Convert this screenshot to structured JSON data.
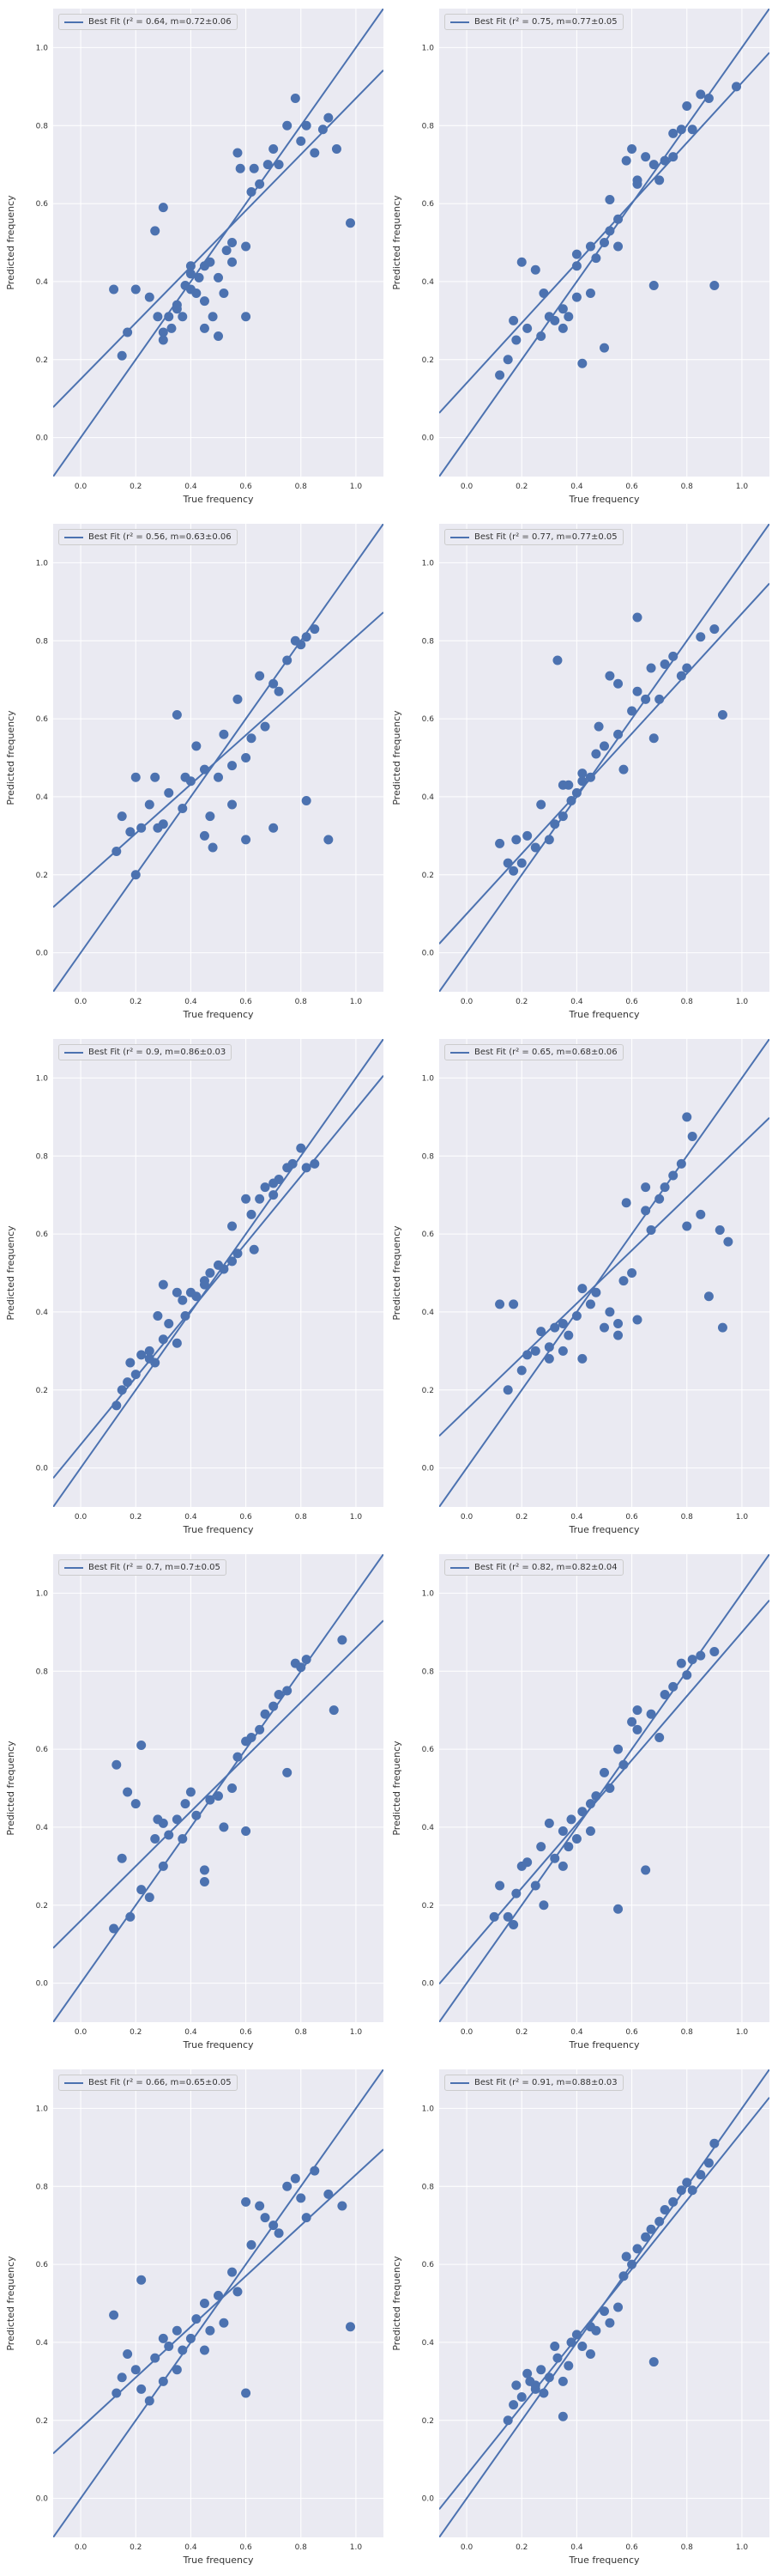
{
  "style": {
    "background": "#eaeaf2",
    "grid": "#ffffff",
    "series_color": "#4c72b0",
    "text": "#333333"
  },
  "chart_data": [
    {
      "type": "scatter",
      "xlabel": "True frequency",
      "ylabel": "Predicted frequency",
      "xlim": [
        -0.1,
        1.1
      ],
      "ylim": [
        -0.1,
        1.1
      ],
      "grid": true,
      "legend_position": "top-left",
      "legend_label": "Best Fit (r² = 0.64, m=0.72±0.06",
      "slope": 0.72,
      "intercept": 0.15,
      "x": [
        0.12,
        0.15,
        0.17,
        0.2,
        0.25,
        0.27,
        0.28,
        0.3,
        0.3,
        0.32,
        0.33,
        0.35,
        0.37,
        0.38,
        0.4,
        0.4,
        0.42,
        0.43,
        0.45,
        0.45,
        0.47,
        0.48,
        0.5,
        0.52,
        0.53,
        0.55,
        0.57,
        0.58,
        0.6,
        0.62,
        0.63,
        0.65,
        0.68,
        0.7,
        0.72,
        0.75,
        0.78,
        0.8,
        0.82,
        0.85,
        0.88,
        0.9,
        0.93,
        0.98,
        0.6,
        0.55,
        0.5,
        0.45,
        0.4,
        0.35,
        0.3
      ],
      "y": [
        0.38,
        0.21,
        0.27,
        0.38,
        0.36,
        0.53,
        0.31,
        0.25,
        0.59,
        0.31,
        0.28,
        0.33,
        0.31,
        0.39,
        0.44,
        0.38,
        0.37,
        0.41,
        0.35,
        0.44,
        0.45,
        0.31,
        0.26,
        0.37,
        0.48,
        0.5,
        0.73,
        0.69,
        0.49,
        0.63,
        0.69,
        0.65,
        0.7,
        0.74,
        0.7,
        0.8,
        0.87,
        0.76,
        0.8,
        0.73,
        0.79,
        0.82,
        0.74,
        0.55,
        0.31,
        0.45,
        0.41,
        0.28,
        0.42,
        0.34,
        0.27
      ]
    },
    {
      "type": "scatter",
      "xlabel": "True frequency",
      "ylabel": "Predicted frequency",
      "xlim": [
        -0.1,
        1.1
      ],
      "ylim": [
        -0.1,
        1.1
      ],
      "grid": true,
      "legend_position": "top-left",
      "legend_label": "Best Fit (r² = 0.75, m=0.77±0.05",
      "slope": 0.77,
      "intercept": 0.14,
      "x": [
        0.12,
        0.15,
        0.17,
        0.18,
        0.2,
        0.22,
        0.25,
        0.27,
        0.3,
        0.32,
        0.35,
        0.37,
        0.4,
        0.4,
        0.42,
        0.45,
        0.47,
        0.5,
        0.5,
        0.52,
        0.55,
        0.58,
        0.6,
        0.62,
        0.65,
        0.68,
        0.7,
        0.72,
        0.75,
        0.78,
        0.8,
        0.82,
        0.85,
        0.88,
        0.9,
        0.98,
        0.68,
        0.52,
        0.45,
        0.4,
        0.28,
        0.35,
        0.62,
        0.75,
        0.55
      ],
      "y": [
        0.16,
        0.2,
        0.3,
        0.25,
        0.45,
        0.28,
        0.43,
        0.26,
        0.31,
        0.3,
        0.33,
        0.31,
        0.36,
        0.47,
        0.19,
        0.49,
        0.46,
        0.5,
        0.23,
        0.53,
        0.56,
        0.71,
        0.74,
        0.65,
        0.72,
        0.39,
        0.66,
        0.71,
        0.78,
        0.79,
        0.85,
        0.79,
        0.88,
        0.87,
        0.39,
        0.9,
        0.7,
        0.61,
        0.37,
        0.44,
        0.37,
        0.28,
        0.66,
        0.72,
        0.49
      ]
    },
    {
      "type": "scatter",
      "xlabel": "True frequency",
      "ylabel": "Predicted frequency",
      "xlim": [
        -0.1,
        1.1
      ],
      "ylim": [
        -0.1,
        1.1
      ],
      "grid": true,
      "legend_position": "top-left",
      "legend_label": "Best Fit (r² = 0.56, m=0.63±0.06",
      "slope": 0.63,
      "intercept": 0.18,
      "x": [
        0.13,
        0.15,
        0.18,
        0.2,
        0.22,
        0.25,
        0.27,
        0.3,
        0.32,
        0.35,
        0.37,
        0.4,
        0.42,
        0.45,
        0.47,
        0.5,
        0.52,
        0.55,
        0.57,
        0.6,
        0.62,
        0.65,
        0.67,
        0.7,
        0.72,
        0.75,
        0.78,
        0.8,
        0.82,
        0.85,
        0.9,
        0.82,
        0.7,
        0.6,
        0.55,
        0.48,
        0.45,
        0.38,
        0.28,
        0.2
      ],
      "y": [
        0.26,
        0.35,
        0.31,
        0.45,
        0.32,
        0.38,
        0.45,
        0.33,
        0.41,
        0.61,
        0.37,
        0.44,
        0.53,
        0.3,
        0.35,
        0.45,
        0.56,
        0.38,
        0.65,
        0.29,
        0.55,
        0.71,
        0.58,
        0.69,
        0.67,
        0.75,
        0.8,
        0.79,
        0.81,
        0.83,
        0.29,
        0.39,
        0.32,
        0.5,
        0.48,
        0.27,
        0.47,
        0.45,
        0.32,
        0.2
      ]
    },
    {
      "type": "scatter",
      "xlabel": "True frequency",
      "ylabel": "Predicted frequency",
      "xlim": [
        -0.1,
        1.1
      ],
      "ylim": [
        -0.1,
        1.1
      ],
      "grid": true,
      "legend_position": "top-left",
      "legend_label": "Best Fit (r² = 0.77, m=0.77±0.05",
      "slope": 0.77,
      "intercept": 0.1,
      "x": [
        0.12,
        0.15,
        0.17,
        0.18,
        0.2,
        0.22,
        0.25,
        0.27,
        0.3,
        0.32,
        0.33,
        0.35,
        0.37,
        0.38,
        0.4,
        0.42,
        0.45,
        0.47,
        0.5,
        0.52,
        0.55,
        0.57,
        0.6,
        0.62,
        0.65,
        0.67,
        0.7,
        0.72,
        0.75,
        0.78,
        0.8,
        0.85,
        0.9,
        0.93,
        0.62,
        0.68,
        0.55,
        0.48,
        0.42,
        0.35
      ],
      "y": [
        0.28,
        0.23,
        0.21,
        0.29,
        0.23,
        0.3,
        0.27,
        0.38,
        0.29,
        0.33,
        0.75,
        0.35,
        0.43,
        0.39,
        0.41,
        0.44,
        0.45,
        0.51,
        0.53,
        0.71,
        0.56,
        0.47,
        0.62,
        0.86,
        0.65,
        0.73,
        0.65,
        0.74,
        0.76,
        0.71,
        0.73,
        0.81,
        0.83,
        0.61,
        0.67,
        0.55,
        0.69,
        0.58,
        0.46,
        0.43
      ]
    },
    {
      "type": "scatter",
      "xlabel": "True frequency",
      "ylabel": "Predicted frequency",
      "xlim": [
        -0.1,
        1.1
      ],
      "ylim": [
        -0.1,
        1.1
      ],
      "grid": true,
      "legend_position": "top-left",
      "legend_label": "Best Fit (r² = 0.9, m=0.86±0.03",
      "slope": 0.86,
      "intercept": 0.06,
      "x": [
        0.13,
        0.15,
        0.17,
        0.18,
        0.2,
        0.22,
        0.25,
        0.27,
        0.28,
        0.3,
        0.32,
        0.35,
        0.37,
        0.38,
        0.4,
        0.42,
        0.45,
        0.47,
        0.5,
        0.52,
        0.55,
        0.57,
        0.6,
        0.62,
        0.65,
        0.67,
        0.7,
        0.72,
        0.75,
        0.77,
        0.8,
        0.82,
        0.85,
        0.63,
        0.55,
        0.45,
        0.35,
        0.3,
        0.25,
        0.7
      ],
      "y": [
        0.16,
        0.2,
        0.22,
        0.27,
        0.24,
        0.29,
        0.3,
        0.27,
        0.39,
        0.33,
        0.37,
        0.32,
        0.43,
        0.39,
        0.45,
        0.44,
        0.47,
        0.5,
        0.52,
        0.51,
        0.62,
        0.55,
        0.69,
        0.65,
        0.69,
        0.72,
        0.73,
        0.74,
        0.77,
        0.78,
        0.82,
        0.77,
        0.78,
        0.56,
        0.53,
        0.48,
        0.45,
        0.47,
        0.28,
        0.7
      ]
    },
    {
      "type": "scatter",
      "xlabel": "True frequency",
      "ylabel": "Predicted frequency",
      "xlim": [
        -0.1,
        1.1
      ],
      "ylim": [
        -0.1,
        1.1
      ],
      "grid": true,
      "legend_position": "top-left",
      "legend_label": "Best Fit (r² = 0.65, m=0.68±0.06",
      "slope": 0.68,
      "intercept": 0.15,
      "x": [
        0.12,
        0.15,
        0.17,
        0.2,
        0.22,
        0.25,
        0.27,
        0.3,
        0.32,
        0.35,
        0.37,
        0.4,
        0.42,
        0.45,
        0.47,
        0.5,
        0.52,
        0.55,
        0.57,
        0.6,
        0.62,
        0.65,
        0.67,
        0.7,
        0.72,
        0.75,
        0.78,
        0.8,
        0.82,
        0.85,
        0.88,
        0.92,
        0.95,
        0.93,
        0.65,
        0.55,
        0.42,
        0.35,
        0.3,
        0.8,
        0.58
      ],
      "y": [
        0.42,
        0.2,
        0.42,
        0.25,
        0.29,
        0.3,
        0.35,
        0.28,
        0.36,
        0.37,
        0.34,
        0.39,
        0.28,
        0.42,
        0.45,
        0.36,
        0.4,
        0.37,
        0.48,
        0.5,
        0.38,
        0.66,
        0.61,
        0.69,
        0.72,
        0.75,
        0.78,
        0.9,
        0.85,
        0.65,
        0.44,
        0.61,
        0.58,
        0.36,
        0.72,
        0.34,
        0.46,
        0.3,
        0.31,
        0.62,
        0.68
      ]
    },
    {
      "type": "scatter",
      "xlabel": "True frequency",
      "ylabel": "Predicted frequency",
      "xlim": [
        -0.1,
        1.1
      ],
      "ylim": [
        -0.1,
        1.1
      ],
      "grid": true,
      "legend_position": "top-left",
      "legend_label": "Best Fit (r² = 0.7, m=0.7±0.05",
      "slope": 0.7,
      "intercept": 0.16,
      "x": [
        0.12,
        0.13,
        0.15,
        0.17,
        0.18,
        0.2,
        0.22,
        0.25,
        0.27,
        0.28,
        0.3,
        0.32,
        0.35,
        0.37,
        0.4,
        0.42,
        0.45,
        0.47,
        0.5,
        0.52,
        0.55,
        0.57,
        0.6,
        0.62,
        0.65,
        0.67,
        0.7,
        0.72,
        0.75,
        0.78,
        0.8,
        0.82,
        0.95,
        0.92,
        0.75,
        0.6,
        0.45,
        0.38,
        0.3,
        0.22
      ],
      "y": [
        0.14,
        0.56,
        0.32,
        0.49,
        0.17,
        0.46,
        0.61,
        0.22,
        0.37,
        0.42,
        0.3,
        0.38,
        0.42,
        0.37,
        0.49,
        0.43,
        0.29,
        0.47,
        0.48,
        0.4,
        0.5,
        0.58,
        0.39,
        0.63,
        0.65,
        0.69,
        0.71,
        0.74,
        0.75,
        0.82,
        0.81,
        0.83,
        0.88,
        0.7,
        0.54,
        0.62,
        0.26,
        0.46,
        0.41,
        0.24
      ]
    },
    {
      "type": "scatter",
      "xlabel": "True frequency",
      "ylabel": "Predicted frequency",
      "xlim": [
        -0.1,
        1.1
      ],
      "ylim": [
        -0.1,
        1.1
      ],
      "grid": true,
      "legend_position": "top-left",
      "legend_label": "Best Fit (r² = 0.82, m=0.82±0.04",
      "slope": 0.82,
      "intercept": 0.08,
      "x": [
        0.1,
        0.12,
        0.15,
        0.17,
        0.18,
        0.2,
        0.22,
        0.25,
        0.27,
        0.3,
        0.32,
        0.35,
        0.37,
        0.38,
        0.4,
        0.42,
        0.45,
        0.47,
        0.5,
        0.52,
        0.55,
        0.57,
        0.6,
        0.62,
        0.65,
        0.67,
        0.7,
        0.72,
        0.75,
        0.78,
        0.8,
        0.82,
        0.85,
        0.9,
        0.55,
        0.62,
        0.45,
        0.35,
        0.28
      ],
      "y": [
        0.17,
        0.25,
        0.17,
        0.15,
        0.23,
        0.3,
        0.31,
        0.25,
        0.35,
        0.41,
        0.32,
        0.39,
        0.35,
        0.42,
        0.37,
        0.44,
        0.46,
        0.48,
        0.54,
        0.5,
        0.19,
        0.56,
        0.67,
        0.65,
        0.29,
        0.69,
        0.63,
        0.74,
        0.76,
        0.82,
        0.79,
        0.83,
        0.84,
        0.85,
        0.6,
        0.7,
        0.39,
        0.3,
        0.2
      ]
    },
    {
      "type": "scatter",
      "xlabel": "True frequency",
      "ylabel": "Predicted frequency",
      "xlim": [
        -0.1,
        1.1
      ],
      "ylim": [
        -0.1,
        1.1
      ],
      "grid": true,
      "legend_position": "top-left",
      "legend_label": "Best Fit (r² = 0.66, m=0.65±0.05",
      "slope": 0.65,
      "intercept": 0.18,
      "x": [
        0.12,
        0.15,
        0.17,
        0.2,
        0.22,
        0.25,
        0.27,
        0.3,
        0.32,
        0.35,
        0.37,
        0.4,
        0.42,
        0.45,
        0.47,
        0.5,
        0.52,
        0.55,
        0.57,
        0.6,
        0.62,
        0.65,
        0.67,
        0.7,
        0.72,
        0.75,
        0.78,
        0.8,
        0.82,
        0.85,
        0.9,
        0.95,
        0.98,
        0.6,
        0.45,
        0.35,
        0.3,
        0.22,
        0.13
      ],
      "y": [
        0.47,
        0.31,
        0.37,
        0.33,
        0.56,
        0.25,
        0.36,
        0.3,
        0.39,
        0.43,
        0.38,
        0.41,
        0.46,
        0.5,
        0.43,
        0.52,
        0.45,
        0.58,
        0.53,
        0.76,
        0.65,
        0.75,
        0.72,
        0.7,
        0.68,
        0.8,
        0.82,
        0.77,
        0.72,
        0.84,
        0.78,
        0.75,
        0.44,
        0.27,
        0.38,
        0.33,
        0.41,
        0.28,
        0.27
      ]
    },
    {
      "type": "scatter",
      "xlabel": "True frequency",
      "ylabel": "Predicted frequency",
      "xlim": [
        -0.1,
        1.1
      ],
      "ylim": [
        -0.1,
        1.1
      ],
      "grid": true,
      "legend_position": "top-left",
      "legend_label": "Best Fit (r² = 0.91, m=0.88±0.03",
      "slope": 0.88,
      "intercept": 0.06,
      "x": [
        0.15,
        0.17,
        0.18,
        0.2,
        0.22,
        0.23,
        0.25,
        0.27,
        0.28,
        0.3,
        0.32,
        0.33,
        0.35,
        0.37,
        0.38,
        0.4,
        0.42,
        0.45,
        0.47,
        0.5,
        0.52,
        0.55,
        0.57,
        0.6,
        0.62,
        0.65,
        0.67,
        0.7,
        0.72,
        0.75,
        0.78,
        0.8,
        0.82,
        0.85,
        0.88,
        0.9,
        0.68,
        0.58,
        0.45,
        0.35,
        0.25
      ],
      "y": [
        0.2,
        0.24,
        0.29,
        0.26,
        0.32,
        0.3,
        0.29,
        0.33,
        0.27,
        0.31,
        0.39,
        0.36,
        0.21,
        0.34,
        0.4,
        0.42,
        0.39,
        0.44,
        0.43,
        0.48,
        0.45,
        0.49,
        0.57,
        0.6,
        0.64,
        0.67,
        0.69,
        0.71,
        0.74,
        0.76,
        0.79,
        0.81,
        0.79,
        0.83,
        0.86,
        0.91,
        0.35,
        0.62,
        0.37,
        0.3,
        0.28
      ]
    }
  ]
}
